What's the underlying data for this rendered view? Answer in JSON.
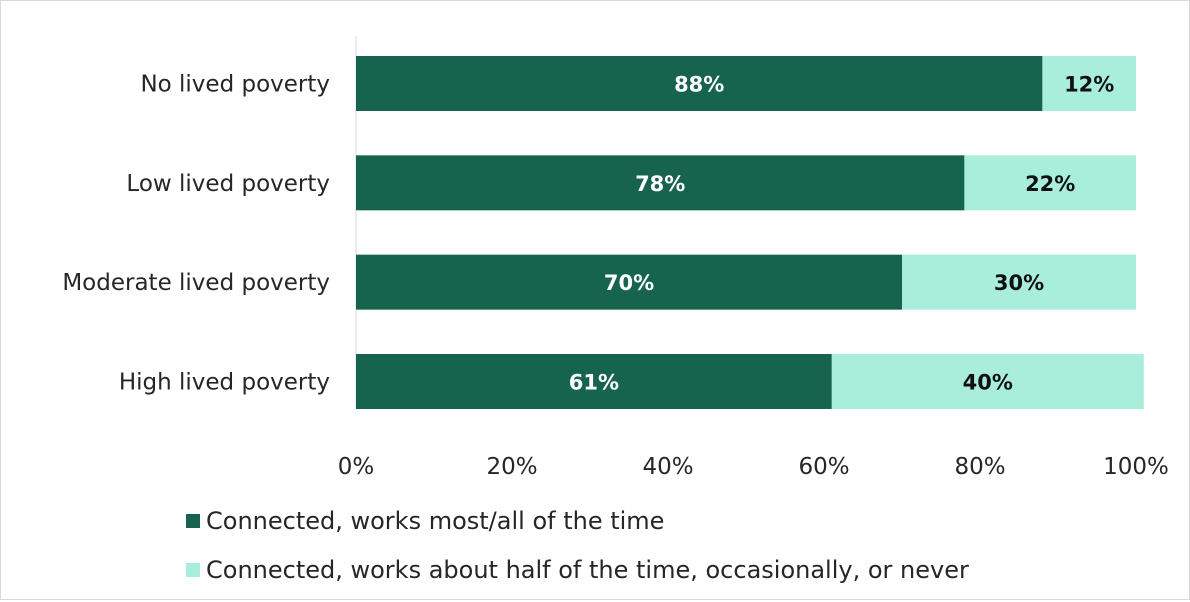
{
  "chart_data": {
    "type": "bar",
    "orientation": "horizontal",
    "stacked": true,
    "categories": [
      "No lived poverty",
      "Low lived poverty",
      "Moderate lived poverty",
      "High lived poverty"
    ],
    "series": [
      {
        "name": "Connected, works most/all of the time",
        "values": [
          88,
          78,
          70,
          61
        ],
        "labels": [
          "88%",
          "78%",
          "70%",
          "61%"
        ],
        "color": "#17644e",
        "label_color": "#ffffff"
      },
      {
        "name": "Connected, works about half of the time, occasionally, or never",
        "values": [
          12,
          22,
          30,
          40
        ],
        "labels": [
          "12%",
          "22%",
          "30%",
          "40%"
        ],
        "color": "#a8eedb",
        "label_color": "#111111"
      }
    ],
    "xlim": [
      0,
      100
    ],
    "x_ticks": [
      "0%",
      "20%",
      "40%",
      "60%",
      "80%",
      "100%"
    ],
    "grid": false,
    "legend_position": "bottom-left"
  }
}
